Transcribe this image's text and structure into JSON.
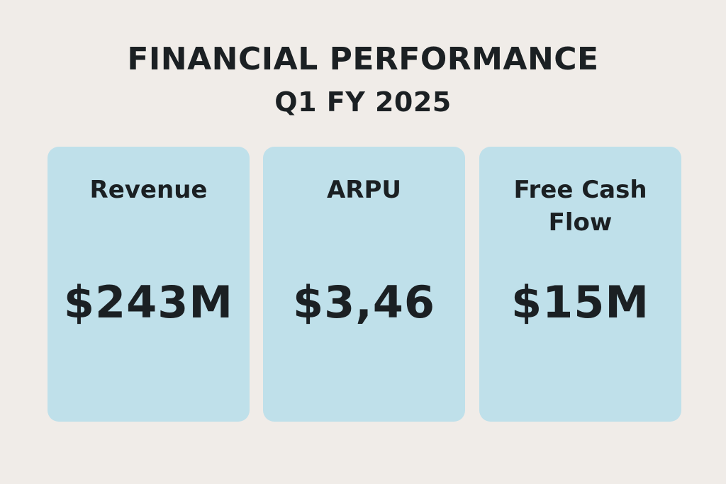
{
  "header": {
    "title": "FINANCIAL PERFORMANCE",
    "subtitle": "Q1 FY 2025"
  },
  "colors": {
    "background": "#f0ece8",
    "card": "#bfe0ea",
    "text": "#1b2023"
  },
  "metrics": [
    {
      "label_lines": [
        "Revenue"
      ],
      "value": "$243M"
    },
    {
      "label_lines": [
        "ARPU"
      ],
      "value": "$3,46"
    },
    {
      "label_lines": [
        "Free Cash",
        "Flow"
      ],
      "value": "$15M"
    }
  ]
}
